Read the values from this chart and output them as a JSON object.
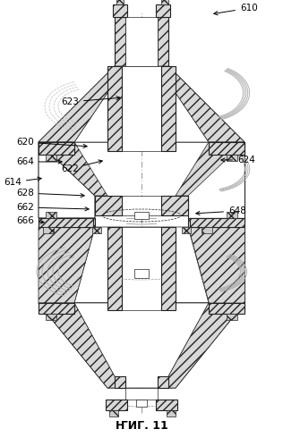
{
  "title": "ҤИГ. 11",
  "bg_color": "#ffffff",
  "line_color": "#222222",
  "fig_label_fontsize": 9,
  "annotation_fontsize": 7.5
}
